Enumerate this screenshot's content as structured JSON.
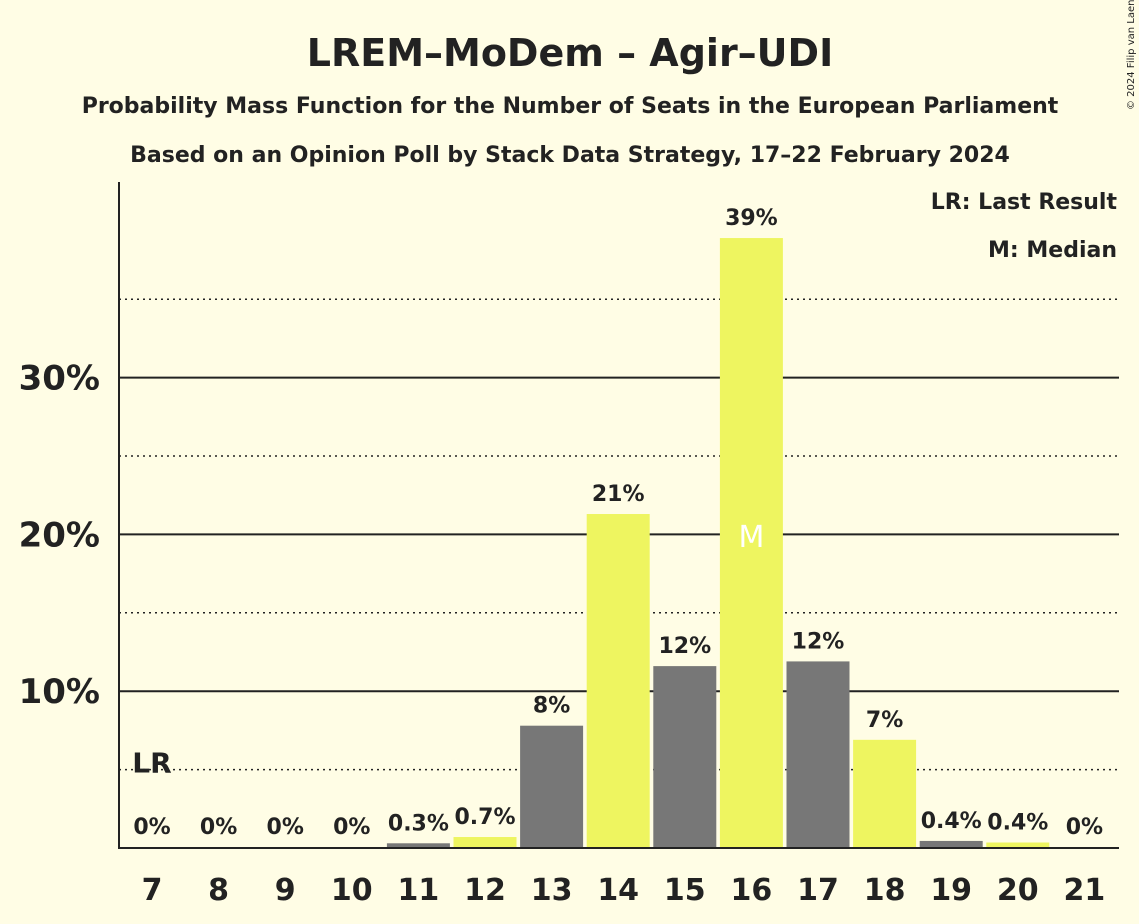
{
  "chart_data": {
    "type": "bar",
    "title": "LREM–MoDem – Agir–UDI",
    "subtitle_1": "Probability Mass Function for the Number of Seats in the European Parliament",
    "subtitle_2": "Based on an Opinion Poll by Stack Data Strategy, 17–22 February 2024",
    "copyright": "© 2024 Filip van Laenen",
    "categories": [
      "7",
      "8",
      "9",
      "10",
      "11",
      "12",
      "13",
      "14",
      "15",
      "16",
      "17",
      "18",
      "19",
      "20",
      "21"
    ],
    "values": [
      0,
      0,
      0,
      0,
      0.3,
      0.7,
      7.8,
      21.3,
      11.6,
      38.9,
      11.9,
      6.9,
      0.45,
      0.35,
      0
    ],
    "labels": [
      "0%",
      "0%",
      "0%",
      "0%",
      "0.3%",
      "0.7%",
      "8%",
      "21%",
      "12%",
      "39%",
      "12%",
      "7%",
      "0.4%",
      "0.4%",
      "0%"
    ],
    "bar_colors": [
      "#EEF560",
      "#EEF560",
      "#777777",
      "#777777",
      "#777777",
      "#EEF560",
      "#777777",
      "#EEF560",
      "#777777",
      "#EEF560",
      "#777777",
      "#EEF560",
      "#777777",
      "#EEF560",
      "#777777"
    ],
    "yticks": [
      10,
      20,
      30
    ],
    "ytick_labels": [
      "10%",
      "20%",
      "30%"
    ],
    "minor_grid": [
      5,
      15,
      25,
      35
    ],
    "ylim": [
      0,
      42.5
    ],
    "last_result_marker": {
      "category": "7",
      "text": "LR"
    },
    "median_marker": {
      "category": "16",
      "text": "M"
    },
    "legend": [
      "LR: Last Result",
      "M: Median"
    ],
    "legend_placement": "top-right",
    "grid": true
  }
}
